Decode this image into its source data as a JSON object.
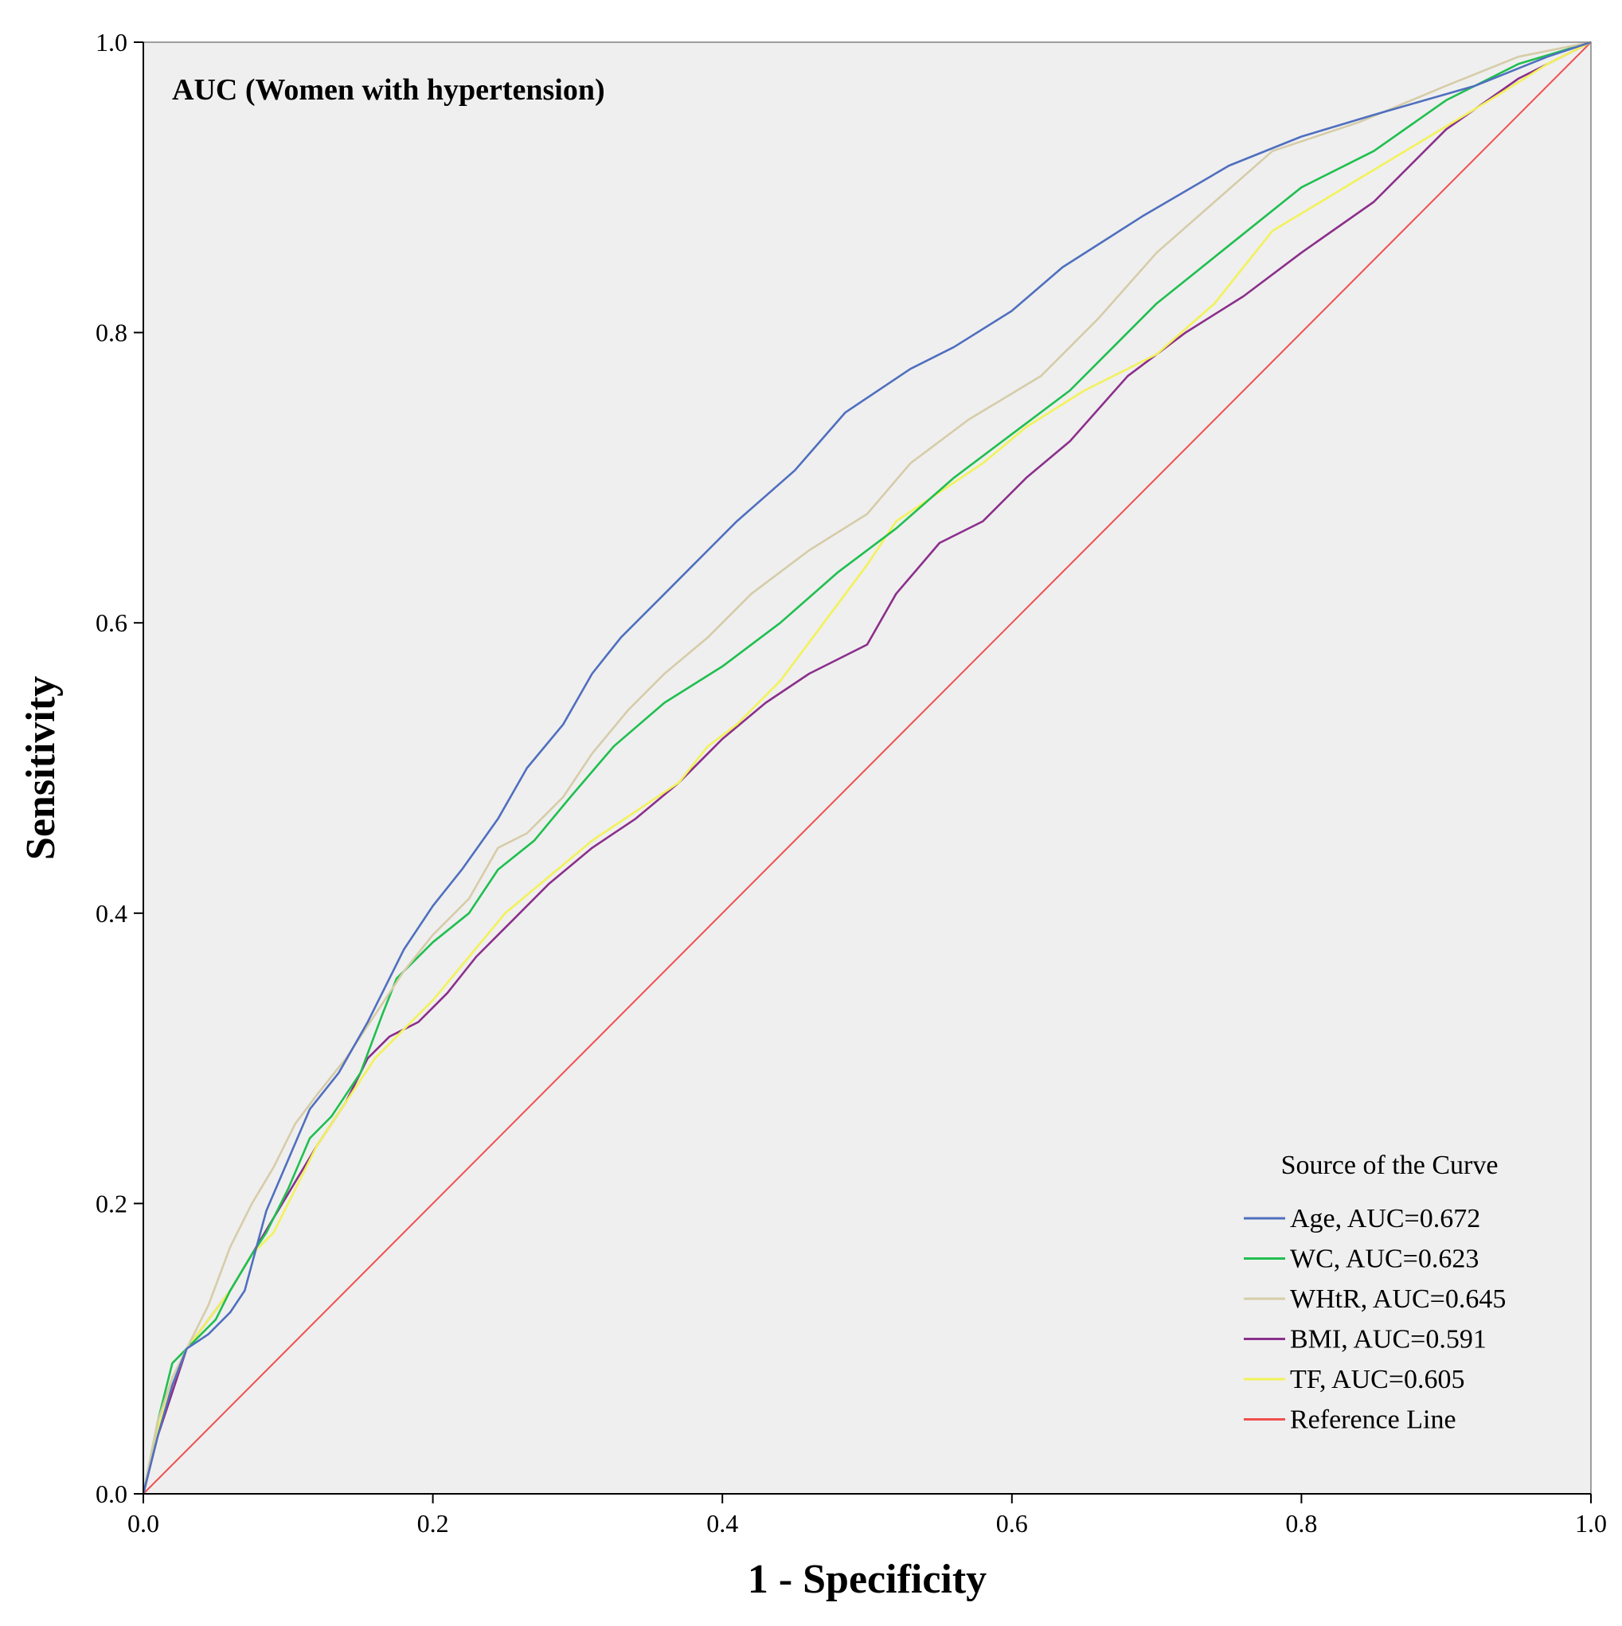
{
  "colors": {
    "plot_background": "#efefef",
    "axis": "#000000",
    "frame": "#808080",
    "age": "#4f6fbf",
    "wc": "#1fbf4f",
    "whtr": "#d6cca8",
    "bmi": "#8b2f8b",
    "tf": "#f2f25a",
    "reference": "#f05050"
  },
  "chart_data": {
    "type": "line",
    "title": "AUC (Women with hypertension)",
    "xlabel": "1 - Specificity",
    "ylabel": "Sensitivity",
    "xlim": [
      0,
      1
    ],
    "ylim": [
      0,
      1
    ],
    "xticks": [
      0.0,
      0.2,
      0.4,
      0.6,
      0.8,
      1.0
    ],
    "yticks": [
      0.0,
      0.2,
      0.4,
      0.6,
      0.8,
      1.0
    ],
    "xtick_labels": [
      "0.0",
      "0.2",
      "0.4",
      "0.6",
      "0.8",
      "1.0"
    ],
    "ytick_labels": [
      "0.0",
      "0.2",
      "0.4",
      "0.6",
      "0.8",
      "1.0"
    ],
    "grid": false,
    "legend": {
      "title": "Source of the Curve",
      "position": "bottom-right"
    },
    "series": [
      {
        "name": "Age, AUC=0.672",
        "color_key": "age",
        "x": [
          0,
          0.01,
          0.02,
          0.03,
          0.045,
          0.06,
          0.07,
          0.085,
          0.1,
          0.115,
          0.135,
          0.155,
          0.18,
          0.2,
          0.22,
          0.245,
          0.265,
          0.29,
          0.31,
          0.33,
          0.355,
          0.38,
          0.41,
          0.45,
          0.485,
          0.53,
          0.56,
          0.6,
          0.635,
          0.69,
          0.75,
          0.8,
          0.85,
          0.92,
          0.97,
          1.0
        ],
        "y": [
          0,
          0.04,
          0.075,
          0.1,
          0.11,
          0.125,
          0.14,
          0.195,
          0.23,
          0.265,
          0.29,
          0.325,
          0.375,
          0.405,
          0.43,
          0.465,
          0.5,
          0.53,
          0.565,
          0.59,
          0.615,
          0.64,
          0.67,
          0.705,
          0.745,
          0.775,
          0.79,
          0.815,
          0.845,
          0.88,
          0.915,
          0.935,
          0.95,
          0.97,
          0.99,
          1.0
        ]
      },
      {
        "name": "WC, AUC=0.623",
        "color_key": "wc",
        "x": [
          0,
          0.01,
          0.02,
          0.03,
          0.04,
          0.05,
          0.06,
          0.075,
          0.085,
          0.1,
          0.115,
          0.13,
          0.15,
          0.165,
          0.175,
          0.2,
          0.225,
          0.245,
          0.27,
          0.295,
          0.325,
          0.36,
          0.4,
          0.44,
          0.48,
          0.52,
          0.56,
          0.6,
          0.64,
          0.7,
          0.75,
          0.8,
          0.85,
          0.9,
          0.95,
          1.0
        ],
        "y": [
          0,
          0.05,
          0.09,
          0.1,
          0.11,
          0.12,
          0.14,
          0.165,
          0.18,
          0.21,
          0.245,
          0.26,
          0.29,
          0.33,
          0.355,
          0.38,
          0.4,
          0.43,
          0.45,
          0.48,
          0.515,
          0.545,
          0.57,
          0.6,
          0.635,
          0.665,
          0.7,
          0.73,
          0.76,
          0.82,
          0.86,
          0.9,
          0.925,
          0.96,
          0.985,
          1.0
        ]
      },
      {
        "name": "WHtR, AUC=0.645",
        "color_key": "whtr",
        "x": [
          0,
          0.01,
          0.02,
          0.03,
          0.045,
          0.06,
          0.075,
          0.09,
          0.105,
          0.12,
          0.14,
          0.16,
          0.18,
          0.2,
          0.225,
          0.245,
          0.265,
          0.29,
          0.31,
          0.335,
          0.36,
          0.39,
          0.42,
          0.46,
          0.5,
          0.53,
          0.57,
          0.62,
          0.66,
          0.7,
          0.74,
          0.78,
          0.84,
          0.9,
          0.95,
          1.0
        ],
        "y": [
          0,
          0.05,
          0.08,
          0.1,
          0.13,
          0.17,
          0.2,
          0.225,
          0.255,
          0.275,
          0.3,
          0.33,
          0.36,
          0.385,
          0.41,
          0.445,
          0.455,
          0.48,
          0.51,
          0.54,
          0.565,
          0.59,
          0.62,
          0.65,
          0.675,
          0.71,
          0.74,
          0.77,
          0.81,
          0.855,
          0.89,
          0.925,
          0.945,
          0.97,
          0.99,
          1.0
        ]
      },
      {
        "name": "BMI, AUC=0.591",
        "color_key": "bmi",
        "x": [
          0,
          0.01,
          0.02,
          0.03,
          0.045,
          0.06,
          0.075,
          0.09,
          0.105,
          0.12,
          0.14,
          0.155,
          0.17,
          0.19,
          0.21,
          0.23,
          0.255,
          0.28,
          0.31,
          0.34,
          0.37,
          0.4,
          0.43,
          0.46,
          0.5,
          0.52,
          0.55,
          0.58,
          0.61,
          0.64,
          0.68,
          0.72,
          0.76,
          0.8,
          0.85,
          0.9,
          0.95,
          1.0
        ],
        "y": [
          0,
          0.04,
          0.07,
          0.1,
          0.12,
          0.14,
          0.165,
          0.19,
          0.215,
          0.24,
          0.27,
          0.3,
          0.315,
          0.325,
          0.345,
          0.37,
          0.395,
          0.42,
          0.445,
          0.465,
          0.49,
          0.52,
          0.545,
          0.565,
          0.585,
          0.62,
          0.655,
          0.67,
          0.7,
          0.725,
          0.77,
          0.8,
          0.825,
          0.855,
          0.89,
          0.94,
          0.975,
          1.0
        ]
      },
      {
        "name": "TF, AUC=0.605",
        "color_key": "tf",
        "x": [
          0,
          0.01,
          0.02,
          0.03,
          0.045,
          0.06,
          0.075,
          0.09,
          0.105,
          0.12,
          0.14,
          0.16,
          0.18,
          0.2,
          0.225,
          0.25,
          0.28,
          0.31,
          0.34,
          0.37,
          0.39,
          0.41,
          0.44,
          0.47,
          0.5,
          0.52,
          0.55,
          0.58,
          0.61,
          0.65,
          0.7,
          0.74,
          0.78,
          0.83,
          0.88,
          0.93,
          0.97,
          1.0
        ],
        "y": [
          0,
          0.045,
          0.075,
          0.1,
          0.12,
          0.14,
          0.165,
          0.18,
          0.21,
          0.24,
          0.27,
          0.3,
          0.32,
          0.34,
          0.37,
          0.4,
          0.425,
          0.45,
          0.47,
          0.49,
          0.515,
          0.53,
          0.56,
          0.6,
          0.64,
          0.67,
          0.69,
          0.71,
          0.735,
          0.76,
          0.785,
          0.82,
          0.87,
          0.9,
          0.93,
          0.96,
          0.985,
          1.0
        ]
      },
      {
        "name": "Reference Line",
        "color_key": "reference",
        "x": [
          0,
          1
        ],
        "y": [
          0,
          1
        ]
      }
    ]
  }
}
